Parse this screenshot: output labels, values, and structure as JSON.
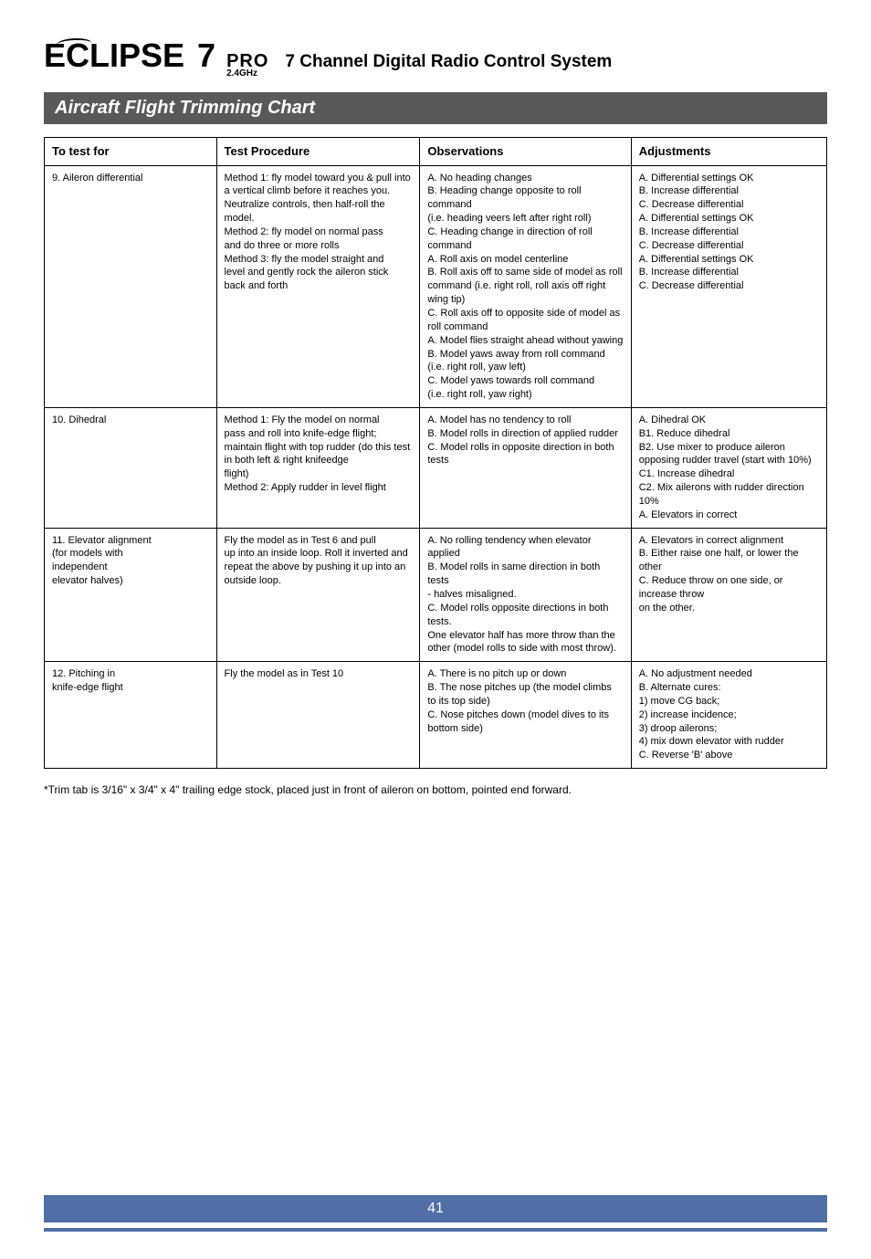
{
  "header": {
    "brand": "ECLIPSE",
    "seven": "7",
    "pro": "PRO",
    "ghz": "2.4GHz",
    "subtitle": "7 Channel Digital Radio Control System"
  },
  "section_title": "Aircraft Flight Trimming Chart",
  "table": {
    "columns": [
      "To test for",
      "Test Procedure",
      "Observations",
      "Adjustments"
    ],
    "rows": [
      {
        "test_for": "9. Aileron differential",
        "procedure": "Method 1: fly model toward you & pull into a vertical climb before it reaches you. Neutralize controls, then half-roll the model.\nMethod 2: fly model on normal pass\nand do three or more rolls\nMethod 3: fly the model straight and\nlevel and gently rock the aileron stick back and forth",
        "observations": "A. No heading changes\nB. Heading change opposite to roll command\n(i.e. heading veers left after right roll)\nC. Heading change in direction of roll\ncommand\nA. Roll axis on model centerline\nB. Roll axis off to same side of model as roll\ncommand (i.e. right roll, roll axis off right\nwing tip)\nC. Roll axis off to opposite side of model as\nroll command\nA. Model flies straight ahead without yawing\nB. Model yaws away from roll command\n(i.e. right roll, yaw left)\nC. Model yaws towards roll command\n(i.e. right roll, yaw right)",
        "adjustments": "A. Differential settings OK\nB. Increase differential\nC. Decrease differential\nA. Differential settings OK\nB. Increase differential\nC. Decrease differential\nA. Differential settings OK\nB. Increase differential\nC. Decrease differential"
      },
      {
        "test_for": "10. Dihedral",
        "procedure": "Method 1: Fly the model on normal\npass and roll into knife-edge flight;\nmaintain flight with top rudder (do this test in both left & right knifeedge\nflight)\nMethod 2: Apply rudder in level flight",
        "observations": "A. Model has no tendency to roll\nB. Model rolls in direction of applied rudder\nC. Model rolls in opposite direction in both tests",
        "adjustments": "A. Dihedral OK\nB1. Reduce dihedral\nB2. Use mixer to produce aileron opposing rudder travel (start with 10%)\nC1. Increase dihedral\nC2. Mix ailerons with rudder direction 10%\nA. Elevators in correct"
      },
      {
        "test_for": "11. Elevator alignment\n(for models with\nindependent\nelevator halves)",
        "procedure": "Fly the model as in Test 6 and pull\nup into an inside loop. Roll it inverted and repeat the above by pushing it up into an outside loop.",
        "observations": "A. No rolling tendency when elevator applied\nB. Model rolls in same direction in both tests\n- halves misaligned.\nC. Model rolls opposite directions in both tests.\nOne elevator half has more throw than the\nother (model rolls to side with most throw).",
        "adjustments": "A. Elevators in correct alignment\nB. Either raise one half, or lower the other\nC. Reduce throw on one side, or increase throw\non the other."
      },
      {
        "test_for": "12. Pitching in\nknife-edge flight",
        "procedure": "Fly the model as in Test 10",
        "observations": "A. There is no pitch up or down\nB. The nose pitches up (the model climbs\nto its top side)\nC. Nose pitches down (model dives to its\nbottom side)",
        "adjustments": "A. No adjustment needed\nB. Alternate cures:\n1) move CG back;\n2) increase incidence;\n3) droop ailerons;\n4) mix down elevator with rudder\nC. Reverse 'B' above"
      }
    ]
  },
  "footnote": "*Trim tab is 3/16\" x 3/4\" x 4\" trailing edge stock, placed just in front of aileron on bottom, pointed end forward.",
  "page_number": "41",
  "colors": {
    "section_bar_bg": "#58595b",
    "footer_bg": "#4f6fa6"
  }
}
